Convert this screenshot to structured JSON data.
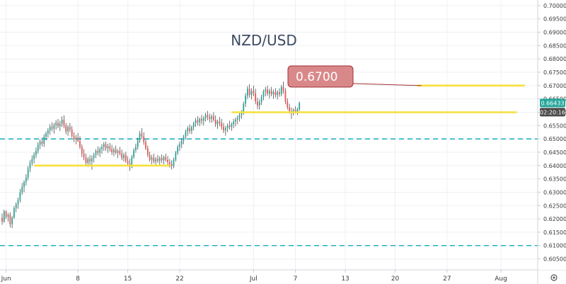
{
  "chart_data": {
    "type": "candlestick",
    "title": "NZD/USD",
    "colors": {
      "up": "#26a69a",
      "down": "#ef5350",
      "wick": "#333333",
      "grid": "#eef0f4",
      "support_line": "#f6e03a",
      "dashed_level": "#26b3c4",
      "callout_fill": "#d9888a",
      "callout_border": "#a43034",
      "price_tag": "#26a69a",
      "timer_tag": "#4a4a4a"
    },
    "y_axis": {
      "ylim": [
        0.6009,
        0.7021
      ],
      "tick_labels": [
        "0.70000",
        "0.69500",
        "0.69000",
        "0.68500",
        "0.68000",
        "0.67500",
        "0.67000",
        "0.66500",
        "0.66000",
        "0.65500",
        "0.65000",
        "0.64500",
        "0.64000",
        "0.63500",
        "0.63000",
        "0.62500",
        "0.62000",
        "0.61500",
        "0.61000",
        "0.60500"
      ]
    },
    "x_axis": {
      "tick_labels": [
        {
          "label": "Jun",
          "bar": 2
        },
        {
          "label": "8",
          "bar": 38
        },
        {
          "label": "15",
          "bar": 63
        },
        {
          "label": "22",
          "bar": 89
        },
        {
          "label": "Jul",
          "bar": 126
        },
        {
          "label": "7",
          "bar": 147
        },
        {
          "label": "13",
          "bar": 172
        },
        {
          "label": "20",
          "bar": 197
        },
        {
          "label": "27",
          "bar": 223
        },
        {
          "label": "Aug",
          "bar": 250
        }
      ]
    },
    "candles": [
      [
        0.6205,
        0.622,
        0.6178,
        0.619
      ],
      [
        0.619,
        0.6235,
        0.6185,
        0.6228
      ],
      [
        0.6228,
        0.6232,
        0.62,
        0.6208
      ],
      [
        0.6208,
        0.6222,
        0.619,
        0.6215
      ],
      [
        0.6215,
        0.6225,
        0.6168,
        0.618
      ],
      [
        0.618,
        0.6212,
        0.6165,
        0.6205
      ],
      [
        0.6205,
        0.6248,
        0.62,
        0.624
      ],
      [
        0.624,
        0.6262,
        0.6225,
        0.6255
      ],
      [
        0.6255,
        0.628,
        0.6238,
        0.627
      ],
      [
        0.627,
        0.6312,
        0.6262,
        0.63
      ],
      [
        0.63,
        0.6335,
        0.629,
        0.632
      ],
      [
        0.632,
        0.6345,
        0.63,
        0.6338
      ],
      [
        0.6338,
        0.6368,
        0.6325,
        0.6355
      ],
      [
        0.6355,
        0.6398,
        0.6345,
        0.6388
      ],
      [
        0.6388,
        0.642,
        0.6375,
        0.641
      ],
      [
        0.641,
        0.6438,
        0.64,
        0.6425
      ],
      [
        0.6425,
        0.645,
        0.6408,
        0.644
      ],
      [
        0.644,
        0.6468,
        0.6428,
        0.6455
      ],
      [
        0.6455,
        0.6488,
        0.6445,
        0.6478
      ],
      [
        0.6478,
        0.6498,
        0.6462,
        0.649
      ],
      [
        0.649,
        0.6505,
        0.6472,
        0.6482
      ],
      [
        0.6482,
        0.6518,
        0.647,
        0.6508
      ],
      [
        0.6508,
        0.6528,
        0.6495,
        0.652
      ],
      [
        0.652,
        0.654,
        0.6505,
        0.6532
      ],
      [
        0.6532,
        0.6555,
        0.6515,
        0.6545
      ],
      [
        0.6545,
        0.6562,
        0.6528,
        0.6538
      ],
      [
        0.6538,
        0.656,
        0.652,
        0.6552
      ],
      [
        0.6552,
        0.657,
        0.6535,
        0.656
      ],
      [
        0.656,
        0.6575,
        0.654,
        0.6548
      ],
      [
        0.6548,
        0.6568,
        0.653,
        0.6558
      ],
      [
        0.6558,
        0.6585,
        0.6545,
        0.6572
      ],
      [
        0.6572,
        0.6588,
        0.654,
        0.655
      ],
      [
        0.655,
        0.656,
        0.6518,
        0.6528
      ],
      [
        0.6528,
        0.6552,
        0.6512,
        0.6545
      ],
      [
        0.6545,
        0.656,
        0.6525,
        0.6535
      ],
      [
        0.6535,
        0.6548,
        0.6505,
        0.6512
      ],
      [
        0.6512,
        0.6525,
        0.6488,
        0.6498
      ],
      [
        0.6498,
        0.6515,
        0.648,
        0.6505
      ],
      [
        0.6505,
        0.6522,
        0.6488,
        0.6492
      ],
      [
        0.6492,
        0.651,
        0.6462,
        0.647
      ],
      [
        0.647,
        0.648,
        0.6432,
        0.6445
      ],
      [
        0.6445,
        0.6462,
        0.642,
        0.643
      ],
      [
        0.643,
        0.6445,
        0.64,
        0.641
      ],
      [
        0.641,
        0.6432,
        0.6395,
        0.6425
      ],
      [
        0.6425,
        0.644,
        0.6402,
        0.6415
      ],
      [
        0.6415,
        0.6438,
        0.6385,
        0.6428
      ],
      [
        0.6428,
        0.6448,
        0.6412,
        0.644
      ],
      [
        0.644,
        0.6462,
        0.6428,
        0.6455
      ],
      [
        0.6455,
        0.6472,
        0.6438,
        0.6448
      ],
      [
        0.6448,
        0.647,
        0.6432,
        0.6462
      ],
      [
        0.6462,
        0.648,
        0.6445,
        0.647
      ],
      [
        0.647,
        0.6488,
        0.6455,
        0.648
      ],
      [
        0.648,
        0.649,
        0.6455,
        0.6465
      ],
      [
        0.6465,
        0.6482,
        0.6448,
        0.6472
      ],
      [
        0.6472,
        0.6485,
        0.6452,
        0.6462
      ],
      [
        0.6462,
        0.6478,
        0.644,
        0.645
      ],
      [
        0.645,
        0.6468,
        0.6435,
        0.646
      ],
      [
        0.646,
        0.6475,
        0.6442,
        0.6448
      ],
      [
        0.6448,
        0.6462,
        0.6428,
        0.6455
      ],
      [
        0.6455,
        0.647,
        0.6438,
        0.6445
      ],
      [
        0.6445,
        0.646,
        0.642,
        0.6428
      ],
      [
        0.6428,
        0.6448,
        0.6415,
        0.644
      ],
      [
        0.644,
        0.6452,
        0.641,
        0.6418
      ],
      [
        0.6418,
        0.6435,
        0.6398,
        0.6408
      ],
      [
        0.6408,
        0.6425,
        0.638,
        0.6395
      ],
      [
        0.6395,
        0.644,
        0.639,
        0.6432
      ],
      [
        0.6432,
        0.6465,
        0.6425,
        0.6458
      ],
      [
        0.6458,
        0.6482,
        0.6448,
        0.647
      ],
      [
        0.647,
        0.6505,
        0.646,
        0.6495
      ],
      [
        0.6495,
        0.653,
        0.6485,
        0.652
      ],
      [
        0.652,
        0.654,
        0.65,
        0.651
      ],
      [
        0.651,
        0.6525,
        0.6478,
        0.6488
      ],
      [
        0.6488,
        0.6498,
        0.6458,
        0.6465
      ],
      [
        0.6465,
        0.6475,
        0.6432,
        0.644
      ],
      [
        0.644,
        0.6452,
        0.6415,
        0.6422
      ],
      [
        0.6422,
        0.644,
        0.6405,
        0.643
      ],
      [
        0.643,
        0.6445,
        0.6408,
        0.6415
      ],
      [
        0.6415,
        0.6432,
        0.64,
        0.6425
      ],
      [
        0.6425,
        0.644,
        0.641,
        0.6418
      ],
      [
        0.6418,
        0.6435,
        0.6402,
        0.6428
      ],
      [
        0.6428,
        0.6442,
        0.641,
        0.642
      ],
      [
        0.642,
        0.6438,
        0.6405,
        0.6432
      ],
      [
        0.6432,
        0.6445,
        0.6415,
        0.6422
      ],
      [
        0.6422,
        0.6436,
        0.64,
        0.6412
      ],
      [
        0.6412,
        0.6425,
        0.6392,
        0.6405
      ],
      [
        0.6405,
        0.642,
        0.6385,
        0.6398
      ],
      [
        0.6398,
        0.643,
        0.639,
        0.6422
      ],
      [
        0.6422,
        0.6455,
        0.6415,
        0.6448
      ],
      [
        0.6448,
        0.6478,
        0.644,
        0.647
      ],
      [
        0.647,
        0.649,
        0.6455,
        0.648
      ],
      [
        0.648,
        0.6502,
        0.6465,
        0.6495
      ],
      [
        0.6495,
        0.6515,
        0.648,
        0.6508
      ],
      [
        0.6508,
        0.6535,
        0.6498,
        0.6528
      ],
      [
        0.6528,
        0.6548,
        0.6512,
        0.654
      ],
      [
        0.654,
        0.6555,
        0.652,
        0.653
      ],
      [
        0.653,
        0.655,
        0.6518,
        0.6545
      ],
      [
        0.6545,
        0.6565,
        0.6532,
        0.6558
      ],
      [
        0.6558,
        0.6578,
        0.6545,
        0.657
      ],
      [
        0.657,
        0.6585,
        0.655,
        0.6562
      ],
      [
        0.6562,
        0.658,
        0.6548,
        0.6575
      ],
      [
        0.6575,
        0.659,
        0.6555,
        0.6568
      ],
      [
        0.6568,
        0.6585,
        0.655,
        0.6578
      ],
      [
        0.6578,
        0.6598,
        0.6565,
        0.659
      ],
      [
        0.659,
        0.6605,
        0.657,
        0.6582
      ],
      [
        0.6582,
        0.6595,
        0.6562,
        0.6575
      ],
      [
        0.6575,
        0.6592,
        0.656,
        0.6585
      ],
      [
        0.6585,
        0.66,
        0.6565,
        0.6572
      ],
      [
        0.6572,
        0.6588,
        0.6545,
        0.6555
      ],
      [
        0.6555,
        0.6572,
        0.6538,
        0.6565
      ],
      [
        0.6565,
        0.6582,
        0.6548,
        0.656
      ],
      [
        0.656,
        0.6575,
        0.6535,
        0.6545
      ],
      [
        0.6545,
        0.656,
        0.6522,
        0.6532
      ],
      [
        0.6532,
        0.6548,
        0.6512,
        0.654
      ],
      [
        0.654,
        0.6558,
        0.6525,
        0.655
      ],
      [
        0.655,
        0.6568,
        0.6535,
        0.6545
      ],
      [
        0.6545,
        0.6562,
        0.653,
        0.6555
      ],
      [
        0.6555,
        0.6575,
        0.654,
        0.6565
      ],
      [
        0.6565,
        0.658,
        0.6548,
        0.6572
      ],
      [
        0.6572,
        0.6588,
        0.6555,
        0.6578
      ],
      [
        0.6578,
        0.6598,
        0.6565,
        0.659
      ],
      [
        0.659,
        0.6608,
        0.6575,
        0.66
      ],
      [
        0.66,
        0.664,
        0.659,
        0.6632
      ],
      [
        0.6632,
        0.6672,
        0.662,
        0.6662
      ],
      [
        0.6662,
        0.6698,
        0.665,
        0.6688
      ],
      [
        0.6688,
        0.6705,
        0.6655,
        0.6665
      ],
      [
        0.6665,
        0.669,
        0.6648,
        0.668
      ],
      [
        0.668,
        0.67,
        0.666,
        0.6672
      ],
      [
        0.6672,
        0.6688,
        0.663,
        0.664
      ],
      [
        0.664,
        0.6655,
        0.6612,
        0.6625
      ],
      [
        0.6625,
        0.6648,
        0.661,
        0.6638
      ],
      [
        0.6638,
        0.6665,
        0.6628,
        0.6658
      ],
      [
        0.6658,
        0.6685,
        0.6645,
        0.6678
      ],
      [
        0.6678,
        0.6695,
        0.666,
        0.6685
      ],
      [
        0.6685,
        0.67,
        0.6662,
        0.667
      ],
      [
        0.667,
        0.6688,
        0.6652,
        0.668
      ],
      [
        0.668,
        0.6695,
        0.666,
        0.6668
      ],
      [
        0.6668,
        0.6685,
        0.665,
        0.6676
      ],
      [
        0.6676,
        0.669,
        0.6655,
        0.6665
      ],
      [
        0.6665,
        0.6682,
        0.6648,
        0.6675
      ],
      [
        0.6675,
        0.669,
        0.6658,
        0.6668
      ],
      [
        0.6668,
        0.6702,
        0.666,
        0.6695
      ],
      [
        0.6695,
        0.6715,
        0.667,
        0.668
      ],
      [
        0.668,
        0.669,
        0.663,
        0.664
      ],
      [
        0.664,
        0.6652,
        0.661,
        0.6618
      ],
      [
        0.6618,
        0.6632,
        0.6595,
        0.6605
      ],
      [
        0.6605,
        0.6618,
        0.6575,
        0.6598
      ],
      [
        0.6598,
        0.6615,
        0.6588,
        0.6608
      ],
      [
        0.6608,
        0.6622,
        0.6595,
        0.6602
      ],
      [
        0.6602,
        0.6618,
        0.659,
        0.6612
      ],
      [
        0.6612,
        0.664,
        0.6605,
        0.6635
      ]
    ],
    "horizontal_levels": [
      {
        "kind": "dashed",
        "price": 0.65
      },
      {
        "kind": "dashed",
        "price": 0.61
      }
    ],
    "support_lines": [
      {
        "from_bar": 16,
        "to_bar": 84,
        "price": 0.64
      },
      {
        "from_bar": 115,
        "to_bar": 258,
        "price": 0.66
      },
      {
        "from_bar": 208,
        "to_bar": 262,
        "price": 0.67
      }
    ],
    "callout": {
      "text": "0.6700"
    },
    "last_price": {
      "value": "0.66433",
      "timer": "02:20:16"
    }
  }
}
